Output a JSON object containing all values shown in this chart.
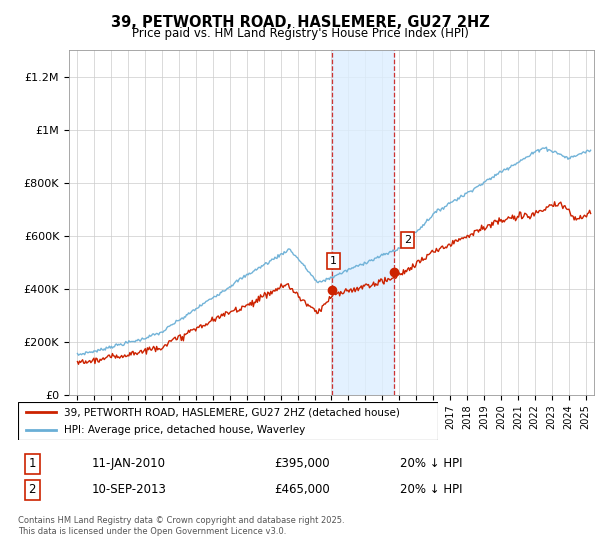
{
  "title": "39, PETWORTH ROAD, HASLEMERE, GU27 2HZ",
  "subtitle": "Price paid vs. HM Land Registry's House Price Index (HPI)",
  "ylabel_ticks": [
    "£0",
    "£200K",
    "£400K",
    "£600K",
    "£800K",
    "£1M",
    "£1.2M"
  ],
  "ytick_values": [
    0,
    200000,
    400000,
    600000,
    800000,
    1000000,
    1200000
  ],
  "ylim": [
    0,
    1300000
  ],
  "xlim_start": 1994.5,
  "xlim_end": 2025.5,
  "line1_color": "#cc2200",
  "line2_color": "#6aafd6",
  "marker_color": "#cc2200",
  "vline1_x": 2010.03,
  "vline2_x": 2013.7,
  "shade_color": "#ddeeff",
  "legend_line1": "39, PETWORTH ROAD, HASLEMERE, GU27 2HZ (detached house)",
  "legend_line2": "HPI: Average price, detached house, Waverley",
  "table_row1_num": "1",
  "table_row1_date": "11-JAN-2010",
  "table_row1_price": "£395,000",
  "table_row1_hpi": "20% ↓ HPI",
  "table_row2_num": "2",
  "table_row2_date": "10-SEP-2013",
  "table_row2_price": "£465,000",
  "table_row2_hpi": "20% ↓ HPI",
  "footer": "Contains HM Land Registry data © Crown copyright and database right 2025.\nThis data is licensed under the Open Government Licence v3.0.",
  "sale1_x": 2010.03,
  "sale1_y": 395000,
  "sale2_x": 2013.7,
  "sale2_y": 465000
}
